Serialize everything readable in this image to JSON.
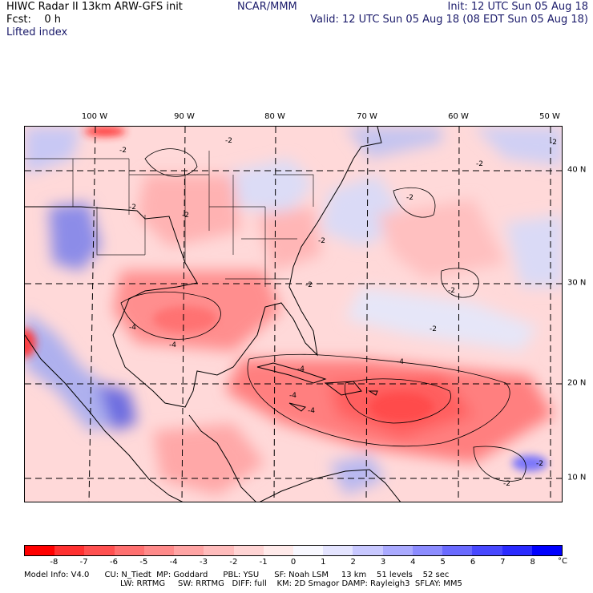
{
  "header": {
    "left_line1": "HIWC Radar II 13km ARW-GFS init",
    "left_line2": "Fcst:    0 h",
    "left_line3": "Lifted index",
    "mid_line1": "NCAR/MMM",
    "right_line1": "Init: 12 UTC Sun 05 Aug 18",
    "right_line2": "Valid: 12 UTC Sun 05 Aug 18 (08 EDT Sun 05 Aug 18)"
  },
  "map": {
    "lon_labels": [
      "100 W",
      "90 W",
      "80 W",
      "70 W",
      "60 W",
      "50 W"
    ],
    "lat_labels": [
      "40 N",
      "30 N",
      "20 N",
      "10 N"
    ],
    "contour_labels": [
      "-2",
      "-2",
      "-2",
      "-2",
      "-2",
      "-2",
      "-2",
      "-2",
      "-2",
      "-2",
      "-4",
      "-4",
      "-4",
      "-4",
      "-4",
      "-4",
      "-2",
      "-2",
      "-2"
    ]
  },
  "colorbar": {
    "ticks": [
      "-8",
      "-7",
      "-6",
      "-5",
      "-4",
      "-3",
      "-2",
      "-1",
      "0",
      "1",
      "2",
      "3",
      "4",
      "5",
      "6",
      "7",
      "8"
    ],
    "unit": "°C",
    "colors": [
      "#ff0000",
      "#ff3030",
      "#ff5050",
      "#ff7070",
      "#ff8a8a",
      "#ffa4a4",
      "#ffbcbc",
      "#ffd4d4",
      "#ffeaea",
      "#f8f8ff",
      "#e4e4ff",
      "#c8c8ff",
      "#aaaaff",
      "#8c8cff",
      "#6a6aff",
      "#4848ff",
      "#2a2aff",
      "#0000ff"
    ]
  },
  "footer": {
    "line1": "Model Info: V4.0      CU: N_Tiedt  MP: Goddard      PBL: YSU      SF: Noah LSM     13 km    51 levels    52 sec",
    "line2": "LW: RRTMG     SW: RRTMG   DIFF: full    KM: 2D Smagor DAMP: Rayleigh3  SFLAY: MM5"
  }
}
